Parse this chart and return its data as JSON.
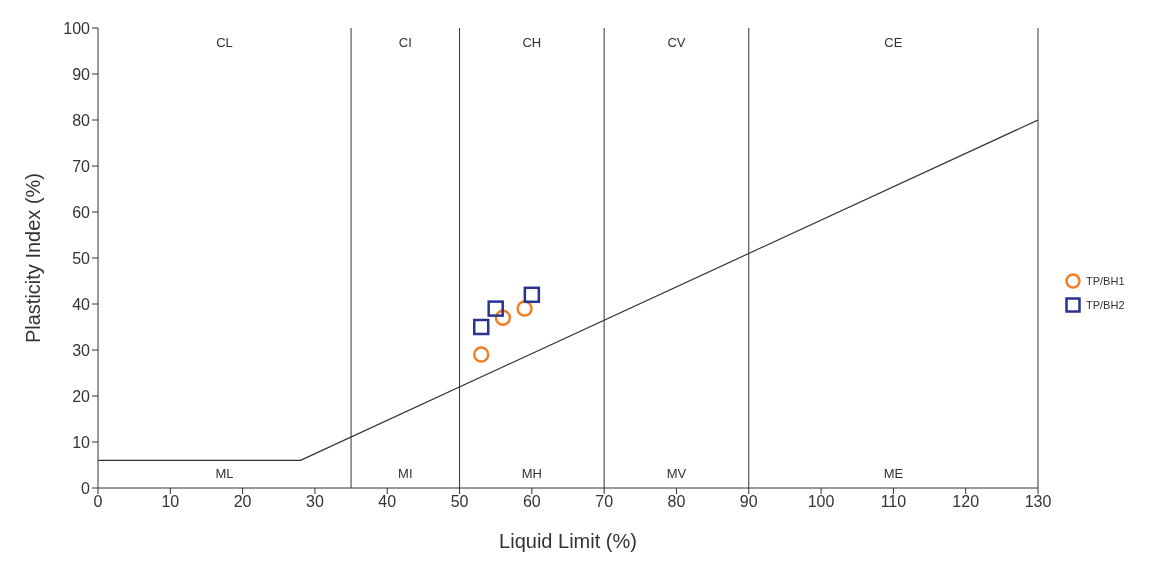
{
  "chart_data": {
    "type": "scatter",
    "xlabel": "Liquid Limit (%)",
    "ylabel": "Plasticity Index (%)",
    "xlim": [
      0,
      130
    ],
    "xticks": [
      0,
      10,
      20,
      30,
      40,
      50,
      60,
      70,
      80,
      90,
      100,
      110,
      120,
      130
    ],
    "ylim": [
      0,
      100
    ],
    "yticks": [
      0,
      10,
      20,
      30,
      40,
      50,
      60,
      70,
      80,
      90,
      100
    ],
    "grid": false,
    "legend": "right",
    "series": [
      {
        "name": "TP/BH1",
        "color": "#f07f2a",
        "marker": "circle",
        "x": [
          53,
          56,
          59
        ],
        "values": [
          29,
          37,
          39
        ]
      },
      {
        "name": "TP/BH2",
        "color": "#2b3390",
        "marker": "square",
        "x": [
          53,
          55,
          60
        ],
        "values": [
          35,
          39,
          42
        ]
      },
      {
        "type": "line",
        "color": "#333333",
        "marker": "none",
        "x": [
          0,
          28,
          130
        ],
        "values": [
          6,
          6,
          80
        ]
      }
    ],
    "ref_lines": [
      {
        "axis": "x",
        "value": 35,
        "color": "#333333"
      },
      {
        "axis": "x",
        "value": 50,
        "color": "#333333"
      },
      {
        "axis": "x",
        "value": 70,
        "color": "#333333"
      },
      {
        "axis": "x",
        "value": 90,
        "color": "#333333"
      }
    ],
    "annotations": [
      "CL",
      "CI",
      "CH",
      "CV",
      "CE",
      "ML",
      "MI",
      "MH",
      "MV",
      "ME"
    ]
  }
}
